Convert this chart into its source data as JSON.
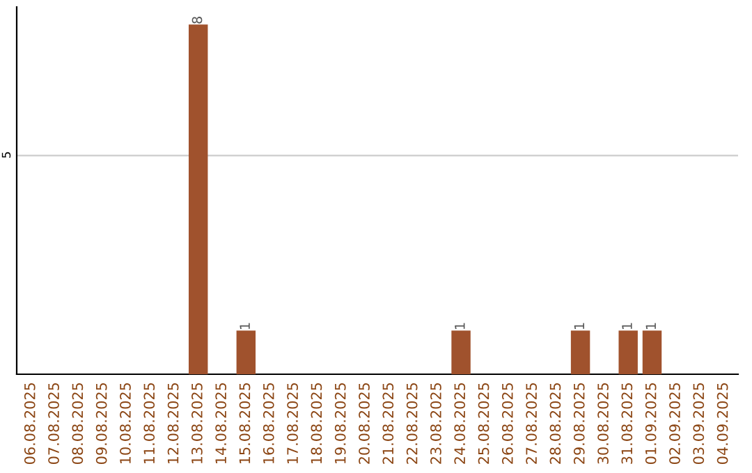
{
  "chart_data": {
    "type": "bar",
    "categories": [
      "06.08.2025",
      "07.08.2025",
      "08.08.2025",
      "09.08.2025",
      "10.08.2025",
      "11.08.2025",
      "12.08.2025",
      "13.08.2025",
      "14.08.2025",
      "15.08.2025",
      "16.08.2025",
      "17.08.2025",
      "18.08.2025",
      "19.08.2025",
      "20.08.2025",
      "21.08.2025",
      "22.08.2025",
      "23.08.2025",
      "24.08.2025",
      "25.08.2025",
      "26.08.2025",
      "27.08.2025",
      "28.08.2025",
      "29.08.2025",
      "30.08.2025",
      "31.08.2025",
      "01.09.2025",
      "02.09.2025",
      "03.09.2025",
      "04.09.2025"
    ],
    "values": [
      0,
      0,
      0,
      0,
      0,
      0,
      0,
      8,
      0,
      1,
      0,
      0,
      0,
      0,
      0,
      0,
      0,
      0,
      1,
      0,
      0,
      0,
      0,
      1,
      0,
      1,
      1,
      0,
      0,
      0
    ],
    "value_labels": [
      null,
      null,
      null,
      null,
      null,
      null,
      null,
      "8",
      null,
      "1",
      null,
      null,
      null,
      null,
      null,
      null,
      null,
      null,
      "1",
      null,
      null,
      null,
      null,
      "1",
      null,
      "1",
      "1",
      null,
      null,
      null
    ],
    "color": "#a0522d",
    "ylim": [
      0,
      8.4
    ],
    "yticks": [
      5
    ],
    "grid": "y",
    "legend": false
  }
}
